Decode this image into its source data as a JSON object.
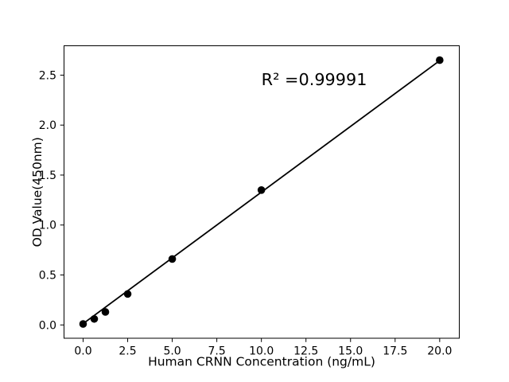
{
  "window": {
    "background_color": "#ffffff",
    "foreground_color": "#000000"
  },
  "chart_data": {
    "type": "scatter",
    "title": "",
    "xlabel": "Human CRNN Concentration (ng/mL)",
    "ylabel": "OD Value(450nm)",
    "annotation": {
      "text": "R² =0.99991",
      "x": 10,
      "y": 2.4
    },
    "r_squared": 0.99991,
    "series": [
      {
        "name": "standard-curve-points",
        "x": [
          0,
          0.625,
          1.25,
          2.5,
          5,
          10,
          20
        ],
        "y": [
          0.01,
          0.06,
          0.13,
          0.31,
          0.66,
          1.35,
          2.65
        ],
        "marker": "circle",
        "marker_color": "#000000"
      }
    ],
    "fit_line": {
      "x_start": 0,
      "y_start": 0.013,
      "x_end": 20,
      "y_end": 2.645,
      "color": "#000000"
    },
    "axes": {
      "xlim": [
        -1.07,
        21.1
      ],
      "ylim": [
        -0.133,
        2.794
      ],
      "x_ticks": [
        0,
        2.5,
        5,
        7.5,
        10,
        12.5,
        15,
        17.5,
        20
      ],
      "x_tick_labels": [
        "0.0",
        "2.5",
        "5.0",
        "7.5",
        "10.0",
        "12.5",
        "15.0",
        "17.5",
        "20.0"
      ],
      "y_ticks": [
        0,
        0.5,
        1,
        1.5,
        2,
        2.5
      ],
      "y_tick_labels": [
        "0.0",
        "0.5",
        "1.0",
        "1.5",
        "2.0",
        "2.5"
      ],
      "grid": false,
      "legend": "none"
    },
    "colors": {
      "points": "#000000",
      "line": "#000000",
      "spines": "#000000",
      "background": "#ffffff"
    }
  }
}
